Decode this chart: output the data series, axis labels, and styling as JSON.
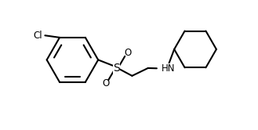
{
  "background_color": "#ffffff",
  "line_color": "#000000",
  "line_width": 1.5,
  "text_color": "#000000",
  "Cl_label": "Cl",
  "HN_label": "HN",
  "S_label": "S",
  "O_label": "O",
  "figsize": [
    3.29,
    1.66
  ],
  "dpi": 100,
  "xlim": [
    0,
    10
  ],
  "ylim": [
    0,
    5
  ]
}
